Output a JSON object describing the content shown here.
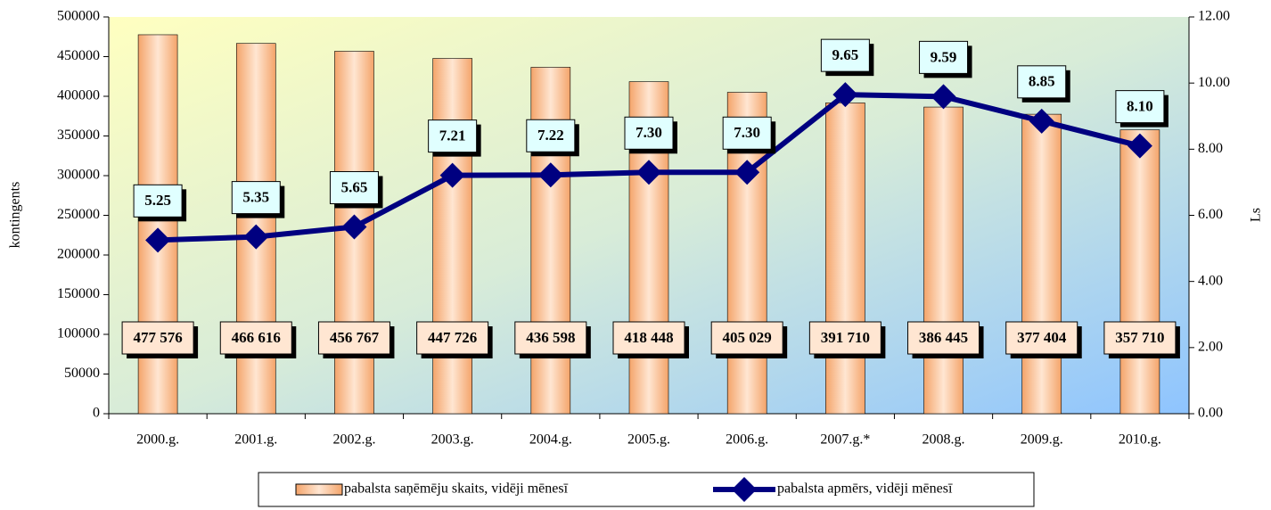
{
  "chart_data": {
    "type": "bar",
    "categories": [
      "2000.g.",
      "2001.g.",
      "2002.g.",
      "2003.g.",
      "2004.g.",
      "2005.g.",
      "2006.g.",
      "2007.g.*",
      "2008.g.",
      "2009.g.",
      "2010.g."
    ],
    "series": [
      {
        "name": "pabalsta saņēmēju skaits, vidēji mēnesī",
        "type": "bar",
        "color": "#f4a46a",
        "values": [
          477576,
          466616,
          456767,
          447726,
          436598,
          418448,
          405029,
          391710,
          386445,
          377404,
          357710
        ],
        "value_labels": [
          "477 576",
          "466 616",
          "456 767",
          "447 726",
          "436 598",
          "418 448",
          "405 029",
          "391 710",
          "386 445",
          "377 404",
          "357 710"
        ]
      },
      {
        "name": "pabalsta apmērs, vidēji mēnesī",
        "type": "line",
        "axis": "y2",
        "color": "#000080",
        "values": [
          5.25,
          5.35,
          5.65,
          7.21,
          7.22,
          7.3,
          7.3,
          9.65,
          9.59,
          8.85,
          8.1
        ],
        "value_labels": [
          "5.25",
          "5.35",
          "5.65",
          "7.21",
          "7.22",
          "7.30",
          "7.30",
          "9.65",
          "9.59",
          "8.85",
          "8.10"
        ]
      }
    ],
    "ylabel": "kontingents",
    "y2label": "Ls",
    "ylim": [
      0,
      500000
    ],
    "yticks": [
      0,
      50000,
      100000,
      150000,
      200000,
      250000,
      300000,
      350000,
      400000,
      450000,
      500000
    ],
    "y2lim": [
      0,
      12
    ],
    "y2ticks": [
      {
        "value": 0,
        "label": "0.00"
      },
      {
        "value": 2,
        "label": "2.00"
      },
      {
        "value": 4,
        "label": "4.00"
      },
      {
        "value": 6,
        "label": "6.00"
      },
      {
        "value": 8,
        "label": "8.00"
      },
      {
        "value": 10,
        "label": "10.00"
      },
      {
        "value": 12,
        "label": "12.00"
      }
    ],
    "legend": "bottom"
  }
}
